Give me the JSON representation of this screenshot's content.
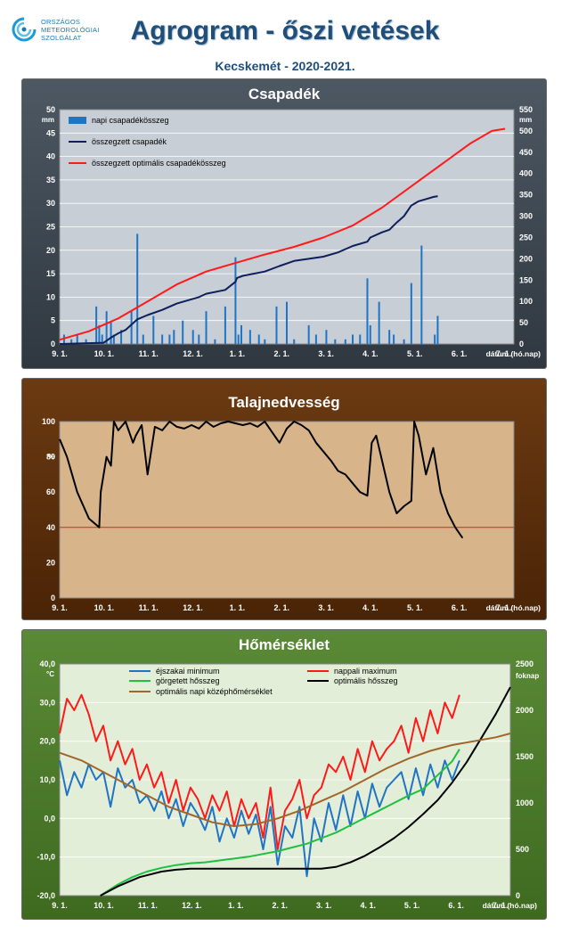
{
  "logo": {
    "lines": [
      "ORSZÁGOS",
      "METEOROLÓGIAI",
      "SZOLGÁLAT"
    ]
  },
  "header": {
    "title": "Agrogram - őszi vetések",
    "subtitle": "Kecskemét - 2020-2021."
  },
  "x_ticks": [
    "9. 1.",
    "10. 1.",
    "11. 1.",
    "12. 1.",
    "1. 1.",
    "2. 1.",
    "3. 1.",
    "4. 1.",
    "5. 1.",
    "6. 1.",
    "7. 1."
  ],
  "colors": {
    "blue": "#1f74c4",
    "navy": "#0d1f5c",
    "red": "#ff1a1a",
    "green": "#1fbf3f",
    "brown": "#a0662b",
    "black": "#000000"
  },
  "chart_data": [
    {
      "type": "bar",
      "title": "Csapadék",
      "xlabel": "dátum (hó.nap)",
      "ylabel": "mm",
      "y2label": "mm",
      "ylim": [
        0,
        50
      ],
      "y2lim": [
        0,
        550
      ],
      "yticks": [
        0,
        5,
        10,
        15,
        20,
        25,
        30,
        35,
        40,
        45,
        50
      ],
      "y2ticks": [
        0,
        50,
        100,
        150,
        200,
        250,
        300,
        350,
        400,
        450,
        500,
        550
      ],
      "legend": "top-left",
      "grid": true,
      "series": [
        {
          "name": "napi csapadékösszeg",
          "type": "bar",
          "axis": "left",
          "color": "#1f74c4",
          "x": [
            3,
            8,
            12,
            18,
            25,
            27,
            29,
            32,
            35,
            37,
            42,
            49,
            53,
            57,
            64,
            70,
            75,
            78,
            84,
            91,
            95,
            100,
            106,
            113,
            120,
            122,
            124,
            130,
            136,
            140,
            148,
            155,
            160,
            170,
            175,
            182,
            188,
            195,
            200,
            205,
            210,
            212,
            218,
            225,
            228,
            235,
            240,
            247,
            256,
            258
          ],
          "values": [
            2,
            1,
            2,
            1,
            8,
            4,
            2,
            7,
            5,
            2,
            3,
            7,
            23.5,
            2,
            6,
            2,
            2,
            3,
            5,
            3,
            2,
            7,
            1,
            8,
            18.5,
            2,
            4,
            3,
            2,
            1,
            8,
            9,
            1,
            4,
            2,
            3,
            1,
            1,
            2,
            2,
            14,
            4,
            9,
            3,
            2,
            1,
            13,
            21,
            2,
            6
          ]
        },
        {
          "name": "összegzett csapadék",
          "type": "line",
          "axis": "right",
          "color": "#0d1f5c",
          "x": [
            0,
            30,
            35,
            40,
            45,
            53,
            60,
            70,
            80,
            95,
            100,
            113,
            120,
            121,
            125,
            140,
            150,
            160,
            170,
            180,
            190,
            200,
            210,
            212,
            220,
            225,
            230,
            235,
            240,
            245,
            250,
            255,
            258
          ],
          "values": [
            0,
            3,
            15,
            25,
            33,
            58,
            68,
            80,
            95,
            110,
            118,
            127,
            146,
            155,
            160,
            170,
            183,
            195,
            200,
            205,
            215,
            230,
            240,
            250,
            262,
            268,
            285,
            300,
            325,
            335,
            340,
            345,
            347
          ]
        },
        {
          "name": "összegzett optimális  csapadékösszeg",
          "type": "line",
          "axis": "right",
          "color": "#ff1a1a",
          "x": [
            0,
            20,
            40,
            60,
            80,
            100,
            120,
            140,
            160,
            180,
            200,
            220,
            240,
            260,
            280,
            295,
            304
          ],
          "values": [
            10,
            30,
            60,
            100,
            140,
            170,
            190,
            210,
            228,
            250,
            278,
            320,
            370,
            420,
            470,
            500,
            505
          ]
        }
      ]
    },
    {
      "type": "line",
      "title": "Talajnedvesség",
      "xlabel": "dátum (hó.nap)",
      "ylabel": "%",
      "ylim": [
        0,
        100
      ],
      "yticks": [
        0,
        20,
        40,
        60,
        80,
        100
      ],
      "grid": false,
      "reference_line": 40,
      "series": [
        {
          "color": "#000000",
          "x": [
            0,
            5,
            12,
            20,
            27,
            28,
            32,
            35,
            37,
            40,
            45,
            50,
            52,
            56,
            60,
            65,
            70,
            75,
            80,
            85,
            90,
            95,
            100,
            105,
            110,
            115,
            120,
            125,
            130,
            135,
            140,
            145,
            150,
            155,
            160,
            165,
            170,
            175,
            180,
            185,
            190,
            195,
            200,
            205,
            210,
            213,
            216,
            220,
            225,
            230,
            235,
            240,
            242,
            245,
            250,
            255,
            260,
            265,
            270,
            275
          ],
          "values": [
            90,
            80,
            60,
            45,
            40,
            60,
            80,
            75,
            100,
            95,
            100,
            88,
            92,
            98,
            70,
            97,
            95,
            100,
            97,
            96,
            98,
            96,
            100,
            97,
            99,
            100,
            99,
            98,
            99,
            97,
            100,
            94,
            88,
            96,
            100,
            98,
            95,
            88,
            83,
            78,
            72,
            70,
            65,
            60,
            58,
            88,
            92,
            78,
            60,
            48,
            52,
            55,
            100,
            92,
            70,
            85,
            60,
            48,
            40,
            34
          ]
        }
      ]
    },
    {
      "type": "line",
      "title": "Hőmérséklet",
      "xlabel": "dátum (hó.nap)",
      "ylabel": "°C",
      "y2label": "foknap",
      "ylim": [
        -20,
        40
      ],
      "y2lim": [
        0,
        2500
      ],
      "yticks": [
        "-20,0",
        "-10,0",
        "0,0",
        "10,0",
        "20,0",
        "30,0",
        "40,0"
      ],
      "y2ticks": [
        0,
        500,
        1000,
        1500,
        2000,
        2500
      ],
      "legend": "top",
      "grid": true,
      "series": [
        {
          "name": "éjszakai minimum",
          "axis": "left",
          "color": "#1f74c4",
          "x": [
            0,
            5,
            10,
            15,
            20,
            25,
            30,
            35,
            40,
            45,
            50,
            55,
            60,
            65,
            70,
            75,
            80,
            85,
            90,
            95,
            100,
            105,
            110,
            115,
            120,
            125,
            130,
            135,
            140,
            145,
            150,
            155,
            160,
            165,
            170,
            175,
            180,
            185,
            190,
            195,
            200,
            205,
            210,
            215,
            220,
            225,
            230,
            235,
            240,
            245,
            250,
            255,
            260,
            265,
            270,
            275
          ],
          "values": [
            15,
            6,
            12,
            8,
            14,
            10,
            12,
            3,
            13,
            8,
            10,
            4,
            6,
            2,
            7,
            0,
            5,
            -2,
            4,
            1,
            -3,
            3,
            -6,
            0,
            -5,
            2,
            -4,
            1,
            -8,
            3,
            -12,
            -2,
            -5,
            3,
            -15,
            0,
            -6,
            4,
            -3,
            6,
            -2,
            7,
            0,
            9,
            3,
            8,
            10,
            12,
            5,
            13,
            6,
            14,
            8,
            15,
            10,
            15
          ]
        },
        {
          "name": "nappali maximum",
          "axis": "left",
          "color": "#ff1a1a",
          "x": [
            0,
            5,
            10,
            15,
            20,
            25,
            30,
            35,
            40,
            45,
            50,
            55,
            60,
            65,
            70,
            75,
            80,
            85,
            90,
            95,
            100,
            105,
            110,
            115,
            120,
            125,
            130,
            135,
            140,
            145,
            150,
            155,
            160,
            165,
            170,
            175,
            180,
            185,
            190,
            195,
            200,
            205,
            210,
            215,
            220,
            225,
            230,
            235,
            240,
            245,
            250,
            255,
            260,
            265,
            270,
            275
          ],
          "values": [
            22,
            31,
            28,
            32,
            27,
            20,
            24,
            15,
            20,
            14,
            18,
            10,
            14,
            8,
            12,
            4,
            10,
            2,
            8,
            5,
            0,
            6,
            2,
            7,
            -2,
            5,
            0,
            4,
            -5,
            8,
            -8,
            2,
            5,
            10,
            0,
            6,
            8,
            14,
            12,
            16,
            10,
            18,
            12,
            20,
            15,
            18,
            20,
            24,
            17,
            26,
            20,
            28,
            22,
            30,
            26,
            32
          ]
        },
        {
          "name": "görgetett hősszeg",
          "axis": "right",
          "color": "#1fbf3f",
          "x": [
            28,
            40,
            50,
            60,
            70,
            80,
            90,
            100,
            110,
            120,
            130,
            140,
            150,
            160,
            170,
            180,
            190,
            200,
            210,
            220,
            230,
            240,
            250,
            260,
            270,
            275
          ],
          "values": [
            0,
            120,
            200,
            260,
            300,
            330,
            350,
            360,
            380,
            400,
            420,
            450,
            480,
            520,
            560,
            620,
            680,
            760,
            840,
            920,
            1000,
            1080,
            1150,
            1300,
            1450,
            1580
          ]
        },
        {
          "name": "optimális hősszeg",
          "axis": "right",
          "color": "#000000",
          "x": [
            28,
            40,
            55,
            70,
            80,
            90,
            100,
            110,
            120,
            130,
            140,
            150,
            160,
            170,
            180,
            190,
            200,
            210,
            220,
            230,
            240,
            250,
            260,
            270,
            280,
            290,
            300,
            310
          ],
          "values": [
            0,
            100,
            200,
            260,
            280,
            290,
            290,
            290,
            290,
            290,
            290,
            290,
            290,
            290,
            290,
            310,
            360,
            430,
            520,
            620,
            740,
            880,
            1030,
            1220,
            1440,
            1700,
            1960,
            2250
          ]
        },
        {
          "name": "optimális napi középhőmérséklet",
          "axis": "left",
          "color": "#a0662b",
          "x": [
            0,
            15,
            30,
            45,
            60,
            75,
            90,
            105,
            120,
            135,
            150,
            165,
            180,
            195,
            210,
            225,
            240,
            255,
            270,
            285,
            300,
            310
          ],
          "values": [
            17,
            15,
            12,
            9,
            6,
            3,
            1,
            -1,
            -2,
            -1.5,
            0,
            2,
            4.5,
            7,
            10,
            13,
            15.5,
            17.5,
            19,
            20,
            21,
            22
          ]
        }
      ]
    }
  ]
}
